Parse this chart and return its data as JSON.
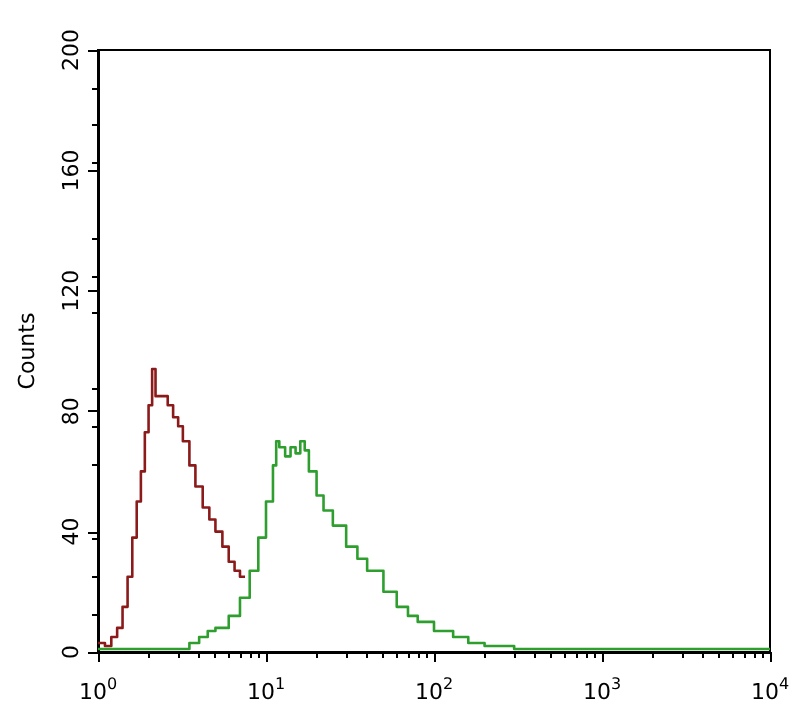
{
  "chart_data": {
    "type": "step",
    "ylabel": "Counts",
    "log": "x",
    "xlim": [
      1,
      10000
    ],
    "ylim": [
      0,
      200
    ],
    "xticks": [
      {
        "value": 1,
        "label": "10$^{0}$"
      },
      {
        "value": 10,
        "label": "10$^{1}$"
      },
      {
        "value": 100,
        "label": "10$^{2}$"
      },
      {
        "value": 1000,
        "label": "10$^{3}$"
      },
      {
        "value": 10000,
        "label": "10$^{4}$"
      }
    ],
    "yticks": [
      0,
      40,
      80,
      120,
      160,
      200
    ],
    "grid": false,
    "marker": "none",
    "series": [
      {
        "color": "#8b1a1a",
        "x": [
          1.0,
          1.1,
          1.2,
          1.3,
          1.4,
          1.5,
          1.6,
          1.7,
          1.8,
          1.9,
          2.0,
          2.1,
          2.2,
          2.4,
          2.6,
          2.8,
          3.0,
          3.2,
          3.5,
          3.8,
          4.2,
          4.6,
          5.0,
          5.5,
          6.0,
          6.5,
          7.0,
          7.5
        ],
        "values": [
          3,
          2,
          5,
          8,
          15,
          25,
          38,
          50,
          60,
          73,
          82,
          94,
          85,
          85,
          82,
          78,
          75,
          70,
          62,
          55,
          48,
          44,
          40,
          35,
          30,
          27,
          25,
          25
        ]
      },
      {
        "color": "#2e9e2e",
        "x": [
          1,
          2,
          3,
          3.5,
          4,
          4.5,
          5,
          6,
          7,
          8,
          9,
          10,
          11,
          11.5,
          12,
          13,
          14,
          15,
          16,
          17,
          18,
          20,
          22,
          25,
          30,
          35,
          40,
          50,
          60,
          70,
          80,
          100,
          130,
          160,
          200,
          300,
          500,
          1000,
          3000,
          8000,
          10000
        ],
        "values": [
          1,
          1,
          1,
          3,
          5,
          7,
          8,
          12,
          18,
          27,
          38,
          50,
          62,
          70,
          68,
          65,
          68,
          66,
          70,
          67,
          60,
          52,
          47,
          42,
          35,
          31,
          27,
          20,
          15,
          12,
          10,
          7,
          5,
          3,
          2,
          1,
          1,
          1,
          1,
          1,
          1
        ]
      }
    ]
  }
}
